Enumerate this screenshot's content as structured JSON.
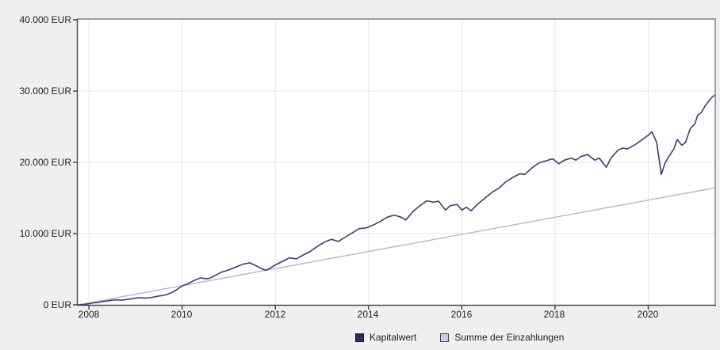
{
  "chart_data": {
    "type": "line",
    "title": "",
    "unit": "EUR",
    "x_domain": [
      2007.76,
      2021.42
    ],
    "y_domain": [
      0,
      40000
    ],
    "x_ticks": [
      {
        "label": "2008",
        "value": 2008
      },
      {
        "label": "2010",
        "value": 2010
      },
      {
        "label": "2012",
        "value": 2012
      },
      {
        "label": "2014",
        "value": 2014
      },
      {
        "label": "2016",
        "value": 2016
      },
      {
        "label": "2018",
        "value": 2018
      },
      {
        "label": "2020",
        "value": 2020
      }
    ],
    "y_ticks": [
      {
        "label": "0 EUR",
        "value": 0
      },
      {
        "label": "10.000 EUR",
        "value": 10000
      },
      {
        "label": "20.000 EUR",
        "value": 20000
      },
      {
        "label": "30.000 EUR",
        "value": 30000
      },
      {
        "label": "40.000 EUR",
        "value": 40000
      }
    ],
    "grid": {
      "vertical_years": [
        2008,
        2010,
        2012,
        2014,
        2016,
        2018,
        2020
      ],
      "horizontal_values": [
        10000,
        20000,
        30000
      ]
    },
    "legend": {
      "position": "bottom-center"
    },
    "colors": {
      "page_bg": "#f0eff0",
      "plot_bg": "#ffffff",
      "grid": "#e4e4ec",
      "axis": "#4a4a50",
      "border": "#9d9da8",
      "label": "#1b1b1b"
    },
    "series": [
      {
        "name": "Kapitalwert",
        "color": "#3d3d6e",
        "width": 1.6,
        "swatch": "#2b2b66",
        "swatch_border": "#15152f",
        "points": [
          [
            2007.76,
            0
          ],
          [
            2007.9,
            60
          ],
          [
            2008.0,
            150
          ],
          [
            2008.1,
            280
          ],
          [
            2008.2,
            350
          ],
          [
            2008.3,
            480
          ],
          [
            2008.4,
            540
          ],
          [
            2008.5,
            650
          ],
          [
            2008.6,
            700
          ],
          [
            2008.7,
            660
          ],
          [
            2008.8,
            750
          ],
          [
            2008.9,
            850
          ],
          [
            2009.0,
            950
          ],
          [
            2009.1,
            1000
          ],
          [
            2009.2,
            950
          ],
          [
            2009.3,
            1000
          ],
          [
            2009.4,
            1100
          ],
          [
            2009.5,
            1250
          ],
          [
            2009.6,
            1350
          ],
          [
            2009.7,
            1500
          ],
          [
            2009.8,
            1800
          ],
          [
            2009.9,
            2200
          ],
          [
            2010.0,
            2650
          ],
          [
            2010.1,
            2900
          ],
          [
            2010.25,
            3400
          ],
          [
            2010.4,
            3800
          ],
          [
            2010.5,
            3650
          ],
          [
            2010.6,
            3750
          ],
          [
            2010.7,
            4100
          ],
          [
            2010.85,
            4600
          ],
          [
            2011.0,
            4900
          ],
          [
            2011.15,
            5300
          ],
          [
            2011.3,
            5700
          ],
          [
            2011.45,
            5900
          ],
          [
            2011.55,
            5600
          ],
          [
            2011.7,
            5100
          ],
          [
            2011.8,
            4850
          ],
          [
            2011.9,
            5200
          ],
          [
            2012.0,
            5600
          ],
          [
            2012.15,
            6100
          ],
          [
            2012.3,
            6600
          ],
          [
            2012.45,
            6450
          ],
          [
            2012.6,
            7000
          ],
          [
            2012.75,
            7500
          ],
          [
            2012.9,
            8200
          ],
          [
            2013.05,
            8800
          ],
          [
            2013.2,
            9200
          ],
          [
            2013.35,
            8900
          ],
          [
            2013.5,
            9500
          ],
          [
            2013.65,
            10100
          ],
          [
            2013.8,
            10700
          ],
          [
            2013.95,
            10800
          ],
          [
            2014.1,
            11200
          ],
          [
            2014.25,
            11700
          ],
          [
            2014.4,
            12300
          ],
          [
            2014.55,
            12600
          ],
          [
            2014.7,
            12300
          ],
          [
            2014.8,
            11900
          ],
          [
            2014.95,
            13100
          ],
          [
            2015.1,
            13900
          ],
          [
            2015.25,
            14600
          ],
          [
            2015.4,
            14400
          ],
          [
            2015.5,
            14550
          ],
          [
            2015.65,
            13300
          ],
          [
            2015.75,
            13900
          ],
          [
            2015.9,
            14100
          ],
          [
            2016.0,
            13300
          ],
          [
            2016.1,
            13700
          ],
          [
            2016.2,
            13200
          ],
          [
            2016.35,
            14200
          ],
          [
            2016.5,
            15000
          ],
          [
            2016.65,
            15800
          ],
          [
            2016.8,
            16400
          ],
          [
            2016.95,
            17300
          ],
          [
            2017.1,
            17900
          ],
          [
            2017.25,
            18400
          ],
          [
            2017.35,
            18300
          ],
          [
            2017.5,
            19200
          ],
          [
            2017.65,
            19900
          ],
          [
            2017.8,
            20200
          ],
          [
            2017.95,
            20500
          ],
          [
            2018.08,
            19800
          ],
          [
            2018.2,
            20300
          ],
          [
            2018.35,
            20600
          ],
          [
            2018.45,
            20300
          ],
          [
            2018.55,
            20800
          ],
          [
            2018.7,
            21100
          ],
          [
            2018.85,
            20300
          ],
          [
            2018.95,
            20600
          ],
          [
            2019.1,
            19300
          ],
          [
            2019.2,
            20600
          ],
          [
            2019.35,
            21700
          ],
          [
            2019.45,
            22000
          ],
          [
            2019.55,
            21900
          ],
          [
            2019.7,
            22400
          ],
          [
            2019.85,
            23100
          ],
          [
            2020.0,
            23800
          ],
          [
            2020.08,
            24300
          ],
          [
            2020.18,
            22800
          ],
          [
            2020.28,
            18300
          ],
          [
            2020.36,
            19900
          ],
          [
            2020.45,
            20900
          ],
          [
            2020.55,
            21900
          ],
          [
            2020.62,
            23200
          ],
          [
            2020.72,
            22400
          ],
          [
            2020.8,
            22800
          ],
          [
            2020.9,
            24700
          ],
          [
            2021.0,
            25400
          ],
          [
            2021.06,
            26600
          ],
          [
            2021.14,
            27000
          ],
          [
            2021.22,
            27900
          ],
          [
            2021.3,
            28600
          ],
          [
            2021.36,
            29100
          ],
          [
            2021.42,
            29400
          ]
        ]
      },
      {
        "name": "Summe der Einzahlungen",
        "color": "#a9b3cf",
        "width": 1.3,
        "swatch": "#c9d1e6",
        "swatch_border": "#3a3a4a",
        "points": [
          [
            2007.76,
            0
          ],
          [
            2021.42,
            16400
          ]
        ]
      }
    ]
  }
}
